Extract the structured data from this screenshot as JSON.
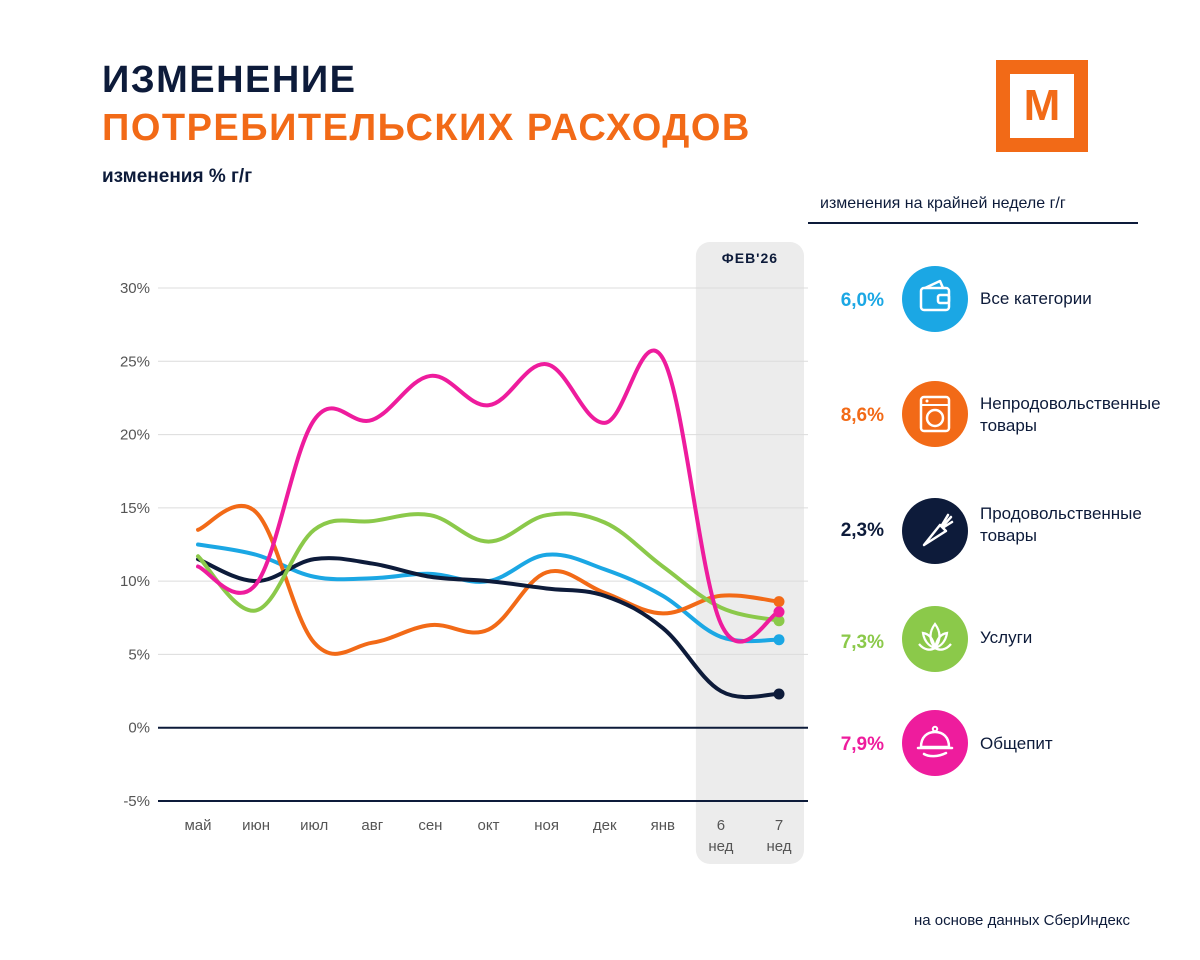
{
  "header": {
    "title_line1": "ИЗМЕНЕНИЕ",
    "title_line2": "ПОТРЕБИТЕЛЬСКИХ РАСХОДОВ",
    "subtitle": "изменения % г/г"
  },
  "logo": {
    "letter": "М",
    "color": "#f26a17"
  },
  "legend": {
    "header": "изменения на крайней неделе г/г",
    "items": [
      {
        "value": "6,0%",
        "label": "Все категории",
        "color": "#1ba7e4",
        "icon": "wallet-icon"
      },
      {
        "value": "8,6%",
        "label": "Непродовольственные товары",
        "color": "#f26a17",
        "icon": "washing-machine-icon"
      },
      {
        "value": "2,3%",
        "label": "Продовольственные товары",
        "color": "#0d1b3a",
        "icon": "carrot-icon"
      },
      {
        "value": "7,3%",
        "label": "Услуги",
        "color": "#8bc94a",
        "icon": "lotus-icon"
      },
      {
        "value": "7,9%",
        "label": "Общепит",
        "color": "#ee1c9d",
        "icon": "cloche-icon"
      }
    ]
  },
  "source": "на основе данных СберИндекс",
  "chart_data": {
    "type": "line",
    "categories": [
      "май",
      "июн",
      "июл",
      "авг",
      "сен",
      "окт",
      "ноя",
      "дек",
      "янв",
      "6 нед",
      "7 нед"
    ],
    "highlight": {
      "label": "ФЕВ'26",
      "from": "6 нед",
      "to": "7 нед"
    },
    "yticks": [
      "30%",
      "25%",
      "20%",
      "15%",
      "10%",
      "5%",
      "0%",
      "-5%"
    ],
    "ytick_values": [
      30,
      25,
      20,
      15,
      10,
      5,
      0,
      -5
    ],
    "ylim": [
      -5,
      30
    ],
    "ylabel": "изменения % г/г",
    "series": [
      {
        "name": "Все категории",
        "color": "#1ba7e4",
        "values": [
          12.5,
          11.8,
          10.3,
          10.2,
          10.5,
          10.0,
          11.8,
          10.8,
          9.0,
          6.2,
          6.0
        ]
      },
      {
        "name": "Непродовольственные товары",
        "color": "#f26a17",
        "values": [
          13.5,
          14.7,
          5.8,
          5.8,
          7.0,
          6.7,
          10.6,
          9.2,
          7.8,
          9.0,
          8.6
        ]
      },
      {
        "name": "Продовольственные товары",
        "color": "#0d1b3a",
        "values": [
          11.5,
          10.0,
          11.5,
          11.2,
          10.3,
          10.0,
          9.5,
          9.0,
          6.8,
          2.5,
          2.3
        ]
      },
      {
        "name": "Услуги",
        "color": "#8bc94a",
        "values": [
          11.7,
          8.0,
          13.5,
          14.1,
          14.5,
          12.7,
          14.5,
          14.0,
          11.0,
          8.2,
          7.3
        ]
      },
      {
        "name": "Общепит",
        "color": "#ee1c9d",
        "values": [
          11.0,
          9.8,
          21.0,
          21.0,
          24.0,
          22.0,
          24.8,
          20.8,
          25.2,
          7.1,
          7.9
        ]
      }
    ]
  }
}
